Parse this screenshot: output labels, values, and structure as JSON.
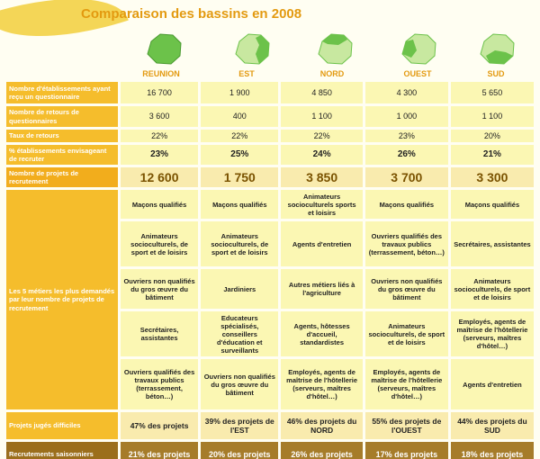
{
  "title": "Comparaison des bassins en 2008",
  "regions": [
    "REUNION",
    "EST",
    "NORD",
    "OUEST",
    "SUD"
  ],
  "colors": {
    "accent": "#e39a10",
    "label_bg": "#f5bd2c",
    "cell_bg": "#fbf7b3",
    "map_green": "#6cc24a",
    "map_light": "#c8e8a0",
    "season_bg": "#a67c2a"
  },
  "maps": [
    "reunion-map-icon",
    "est-map-icon",
    "nord-map-icon",
    "ouest-map-icon",
    "sud-map-icon"
  ],
  "rows": {
    "etablissements": {
      "label": "Nombre d'établissements ayant reçu un questionnaire",
      "values": [
        "16 700",
        "1 900",
        "4 850",
        "4 300",
        "5 650"
      ]
    },
    "retours": {
      "label": "Nombre de retours de questionnaires",
      "values": [
        "3 600",
        "400",
        "1 100",
        "1 000",
        "1 100"
      ]
    },
    "taux": {
      "label": "Taux de retours",
      "values": [
        "22%",
        "22%",
        "22%",
        "23%",
        "20%"
      ]
    },
    "recruter": {
      "label": "% établissements envisageant de recruter",
      "values": [
        "23%",
        "25%",
        "24%",
        "26%",
        "21%"
      ]
    },
    "projets": {
      "label": "Nombre de projets de recrutement",
      "values": [
        "12 600",
        "1 750",
        "3 850",
        "3 700",
        "3 300"
      ]
    }
  },
  "metiers": {
    "label": "Les 5 métiers les plus demandés par leur nombre de projets de recrutement",
    "rows": [
      [
        "Maçons qualifiés",
        "Maçons qualifiés",
        "Animateurs socioculturels sports et loisirs",
        "Maçons qualifiés",
        "Maçons qualifiés"
      ],
      [
        "Animateurs socioculturels, de sport et de loisirs",
        "Animateurs socioculturels, de sport et de loisirs",
        "Agents d'entretien",
        "Ouvriers qualifiés des travaux publics (terrassement, béton…)",
        "Secrétaires, assistantes"
      ],
      [
        "Ouvriers non qualifiés du gros œuvre du bâtiment",
        "Jardiniers",
        "Autres métiers liés à l'agriculture",
        "Ouvriers non qualifiés du gros œuvre du bâtiment",
        "Animateurs socioculturels, de sport et de loisirs"
      ],
      [
        "Secrétaires, assistantes",
        "Educateurs spécialisés, conseillers d'éducation et surveillants",
        "Agents, hôtesses d'accueil, standardistes",
        "Animateurs socioculturels, de sport et de loisirs",
        "Employés, agents de maîtrise de l'hôtellerie (serveurs, maîtres d'hôtel…)"
      ],
      [
        "Ouvriers qualifiés des travaux publics (terrassement, béton…)",
        "Ouvriers non qualifiés du gros œuvre du bâtiment",
        "Employés, agents de maîtrise de l'hôtellerie (serveurs, maîtres d'hôtel…)",
        "Employés, agents de maîtrise de l'hôtellerie (serveurs, maîtres d'hôtel…)",
        "Agents d'entretien"
      ]
    ]
  },
  "difficiles": {
    "label": "Projets jugés difficiles",
    "values": [
      "47% des projets",
      "39% des projets de l'EST",
      "46% des projets du NORD",
      "55% des projets de l'OUEST",
      "44% des projets du SUD"
    ]
  },
  "saisonniers": {
    "label": "Recrutements saisonniers",
    "values": [
      "21%  des projets",
      "20% des projets",
      "26% des projets",
      "17% des projets",
      "18% des projets"
    ]
  }
}
